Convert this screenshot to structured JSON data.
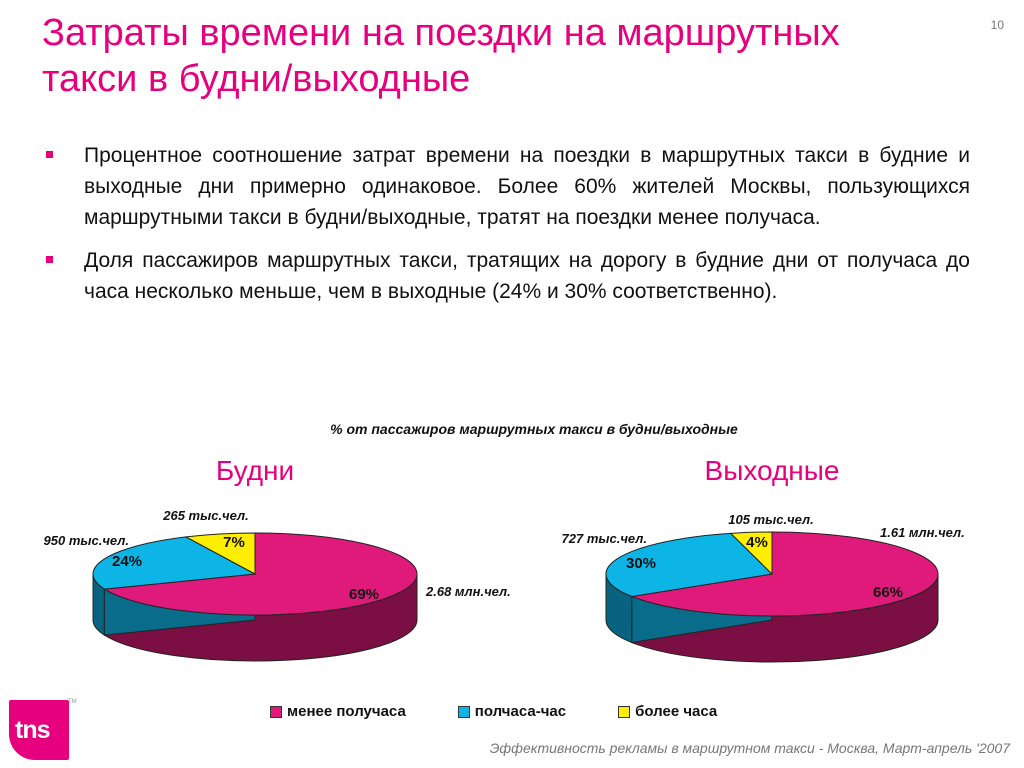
{
  "slide": {
    "title": "Затраты времени на поездки на маршрутных такси в будни/выходные",
    "page_number": "10",
    "bullets": [
      "Процентное соотношение затрат времени на поездки в маршрутных такси в будние и выходные дни примерно одинаковое. Более 60% жителей Москвы, пользующихся маршрутными такси в будни/выходные, тратят на поездки менее получаса.",
      "Доля пассажиров  маршрутных такси, тратящих на дорогу в будние дни от  получаса до часа несколько меньше, чем в выходные (24% и 30% соответственно)."
    ],
    "footer": "Эффективность рекламы в маршрутном такси - Москва, Март-апрель '2007",
    "logo_text": "tns",
    "trademark": "TM"
  },
  "colors": {
    "accent": "#e6007e",
    "less_half_hour": "#e01a7a",
    "half_to_hour": "#0db4e6",
    "more_hour": "#ffee00"
  },
  "chart_data": {
    "type": "pie",
    "title": "% от пассажиров маршрутных такси  в будни/выходные",
    "legend_position": "bottom",
    "categories": [
      "менее получаса",
      "полчаса-час",
      "более часа"
    ],
    "charts": [
      {
        "title": "Будни",
        "values": [
          69,
          24,
          7
        ],
        "value_labels": [
          "69%",
          "24%",
          "7%"
        ],
        "counts": [
          "2.68 млн.чел.",
          "950 тыс.чел.",
          "265 тыс.чел."
        ]
      },
      {
        "title": "Выходные",
        "values": [
          66,
          30,
          4
        ],
        "value_labels": [
          "66%",
          "30%",
          "4%"
        ],
        "counts": [
          "1.61 млн.чел.",
          "727 тыс.чел.",
          "105 тыс.чел."
        ]
      }
    ]
  }
}
